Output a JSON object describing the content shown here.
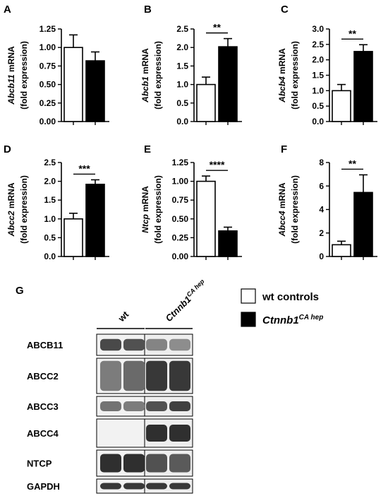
{
  "chart_data": [
    {
      "type": "bar",
      "panel": "A",
      "gene": "Abcb11",
      "ylabel_suffix": " mRNA",
      "ylabel_line2": "(fold expression)",
      "ylim": [
        0,
        1.25
      ],
      "yticks": [
        "0.00",
        "0.25",
        "0.50",
        "0.75",
        "1.00",
        "1.25"
      ],
      "tick_values": [
        0,
        0.25,
        0.5,
        0.75,
        1.0,
        1.25
      ],
      "values": [
        1.0,
        0.82
      ],
      "errors": [
        0.17,
        0.12
      ],
      "significance": ""
    },
    {
      "type": "bar",
      "panel": "B",
      "gene": "Abcb1",
      "ylabel_suffix": " mRNA",
      "ylabel_line2": "(fold expression)",
      "ylim": [
        0,
        2.5
      ],
      "yticks": [
        "0.0",
        "0.5",
        "1.0",
        "1.5",
        "2.0",
        "2.5"
      ],
      "tick_values": [
        0,
        0.5,
        1.0,
        1.5,
        2.0,
        2.5
      ],
      "values": [
        1.0,
        2.02
      ],
      "errors": [
        0.2,
        0.22
      ],
      "significance": "**"
    },
    {
      "type": "bar",
      "panel": "C",
      "gene": "Abcb4",
      "ylabel_suffix": " mRNA",
      "ylabel_line2": "(fold expression)",
      "ylim": [
        0,
        3.0
      ],
      "yticks": [
        "0.0",
        "0.5",
        "1.0",
        "1.5",
        "2.0",
        "2.5",
        "3.0"
      ],
      "tick_values": [
        0,
        0.5,
        1.0,
        1.5,
        2.0,
        2.5,
        3.0
      ],
      "values": [
        1.0,
        2.27
      ],
      "errors": [
        0.2,
        0.22
      ],
      "significance": "**"
    },
    {
      "type": "bar",
      "panel": "D",
      "gene": "Abcc2",
      "ylabel_suffix": " mRNA",
      "ylabel_line2": "(fold expression)",
      "ylim": [
        0,
        2.5
      ],
      "yticks": [
        "0.0",
        "0.5",
        "1.0",
        "1.5",
        "2.0",
        "2.5"
      ],
      "tick_values": [
        0,
        0.5,
        1.0,
        1.5,
        2.0,
        2.5
      ],
      "values": [
        1.0,
        1.92
      ],
      "errors": [
        0.15,
        0.12
      ],
      "significance": "***"
    },
    {
      "type": "bar",
      "panel": "E",
      "gene": "Ntcp",
      "ylabel_suffix": " mRNA",
      "ylabel_line2": "(fold expression)",
      "ylim": [
        0,
        1.25
      ],
      "yticks": [
        "0.00",
        "0.25",
        "0.50",
        "0.75",
        "1.00",
        "1.25"
      ],
      "tick_values": [
        0,
        0.25,
        0.5,
        0.75,
        1.0,
        1.25
      ],
      "values": [
        1.0,
        0.34
      ],
      "errors": [
        0.07,
        0.05
      ],
      "significance": "****"
    },
    {
      "type": "bar",
      "panel": "F",
      "gene": "Abcc4",
      "ylabel_suffix": " mRNA",
      "ylabel_line2": "(fold expression)",
      "ylim": [
        0,
        8
      ],
      "yticks": [
        "0",
        "2",
        "4",
        "6",
        "8"
      ],
      "tick_values": [
        0,
        2,
        4,
        6,
        8
      ],
      "values": [
        1.0,
        5.45
      ],
      "errors": [
        0.3,
        1.5
      ],
      "significance": "**"
    }
  ],
  "colors": {
    "wt": "#ffffff",
    "mutant": "#000000",
    "stroke": "#000000"
  },
  "legend": {
    "wt_label": "wt controls",
    "mutant_label": "Ctnnb1",
    "mutant_sup": "CA hep"
  },
  "blot": {
    "panel": "G",
    "group_wt": "wt",
    "group_mutant": "Ctnnb1",
    "group_mutant_sup": "CA hep",
    "rows": [
      {
        "label": "ABCB11",
        "wt": [
          0.75,
          0.7
        ],
        "mut": [
          0.4,
          0.35
        ],
        "thick": 0.55
      },
      {
        "label": "ABCC2",
        "wt": [
          0.45,
          0.55
        ],
        "mut": [
          0.85,
          0.85
        ],
        "thick": 0.85
      },
      {
        "label": "ABCC3",
        "wt": [
          0.5,
          0.45
        ],
        "mut": [
          0.7,
          0.8
        ],
        "thick": 0.5
      },
      {
        "label": "ABCC4",
        "wt": [
          0.0,
          0.0
        ],
        "mut": [
          0.9,
          0.9
        ],
        "thick": 0.6
      },
      {
        "label": "NTCP",
        "wt": [
          0.9,
          0.9
        ],
        "mut": [
          0.7,
          0.65
        ],
        "thick": 0.7
      },
      {
        "label": "GAPDH",
        "wt": [
          0.85,
          0.85
        ],
        "mut": [
          0.85,
          0.85
        ],
        "thick": 0.45
      }
    ]
  }
}
